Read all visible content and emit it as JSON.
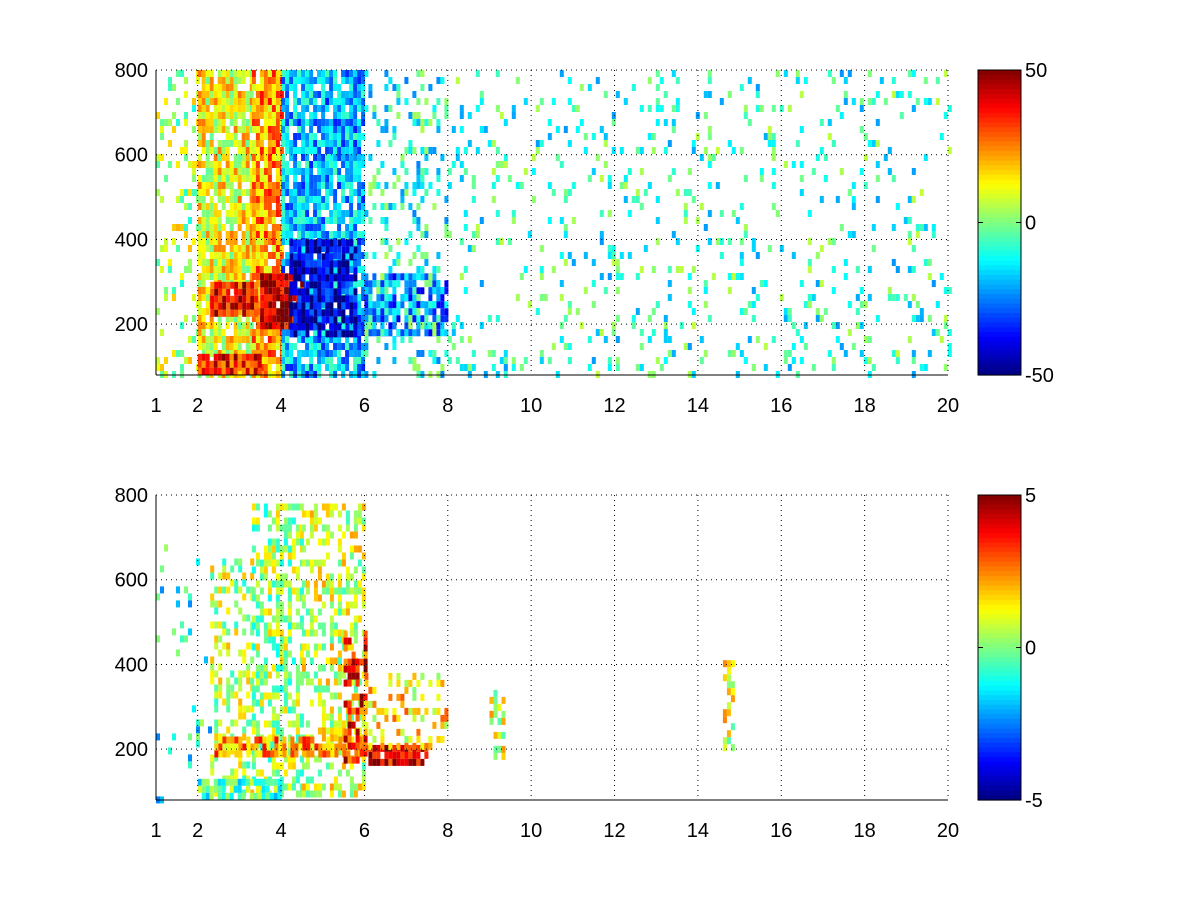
{
  "chart_data": [
    {
      "type": "heatmap",
      "colormap": "jet",
      "xlim": [
        1,
        20
      ],
      "ylim": [
        80,
        800
      ],
      "xticks": [
        1,
        2,
        4,
        6,
        8,
        10,
        12,
        14,
        16,
        18,
        20
      ],
      "yticks": [
        200,
        400,
        600,
        800
      ],
      "grid": true,
      "colorbar": {
        "min": -50,
        "max": 50,
        "ticks": [
          50,
          0,
          -50
        ],
        "placement": "right"
      },
      "regions": [
        {
          "x": [
            1.0,
            2.0
          ],
          "y": [
            80,
            800
          ],
          "value": 5,
          "density": 0.25
        },
        {
          "x": [
            2.0,
            3.3
          ],
          "y": [
            80,
            800
          ],
          "value": 12,
          "density": 0.85
        },
        {
          "x": [
            3.3,
            4.0
          ],
          "y": [
            80,
            800
          ],
          "value": 22,
          "density": 0.9
        },
        {
          "x": [
            4.0,
            6.0
          ],
          "y": [
            80,
            800
          ],
          "value": -20,
          "density": 0.85
        },
        {
          "x": [
            3.5,
            4.5
          ],
          "y": [
            200,
            320
          ],
          "value": 45,
          "density": 0.95
        },
        {
          "x": [
            2.3,
            3.4
          ],
          "y": [
            220,
            300
          ],
          "value": 38,
          "density": 0.9
        },
        {
          "x": [
            2.0,
            3.5
          ],
          "y": [
            90,
            130
          ],
          "value": 35,
          "density": 0.9
        },
        {
          "x": [
            4.2,
            5.8
          ],
          "y": [
            180,
            400
          ],
          "value": -42,
          "density": 0.85
        },
        {
          "x": [
            6.0,
            8.0
          ],
          "y": [
            180,
            320
          ],
          "value": -25,
          "density": 0.7
        },
        {
          "x": [
            6.0,
            8.0
          ],
          "y": [
            80,
            800
          ],
          "value": -10,
          "density": 0.25
        },
        {
          "x": [
            8.0,
            20.0
          ],
          "y": [
            80,
            800
          ],
          "value": -8,
          "density": 0.12
        }
      ]
    },
    {
      "type": "heatmap",
      "colormap": "jet",
      "xlim": [
        1,
        20
      ],
      "ylim": [
        80,
        800
      ],
      "xticks": [
        1,
        2,
        4,
        6,
        8,
        10,
        12,
        14,
        16,
        18,
        20
      ],
      "yticks": [
        200,
        400,
        600,
        800
      ],
      "grid": true,
      "colorbar": {
        "min": -5,
        "max": 5,
        "ticks": [
          5,
          0,
          -5
        ],
        "placement": "right"
      },
      "regions": [
        {
          "x": [
            1.0,
            2.3
          ],
          "y": [
            80,
            700
          ],
          "value": -1,
          "density": 0.04
        },
        {
          "x": [
            2.3,
            3.3
          ],
          "y": [
            90,
            650
          ],
          "value": 0.5,
          "density": 0.4
        },
        {
          "x": [
            3.3,
            4.5
          ],
          "y": [
            90,
            780
          ],
          "value": 0.3,
          "density": 0.55
        },
        {
          "x": [
            4.5,
            6.0
          ],
          "y": [
            90,
            780
          ],
          "value": 0.8,
          "density": 0.45
        },
        {
          "x": [
            2.0,
            4.0
          ],
          "y": [
            90,
            130
          ],
          "value": -0.5,
          "density": 0.9
        },
        {
          "x": [
            2.4,
            6.0
          ],
          "y": [
            195,
            230
          ],
          "value": 2.2,
          "density": 0.7
        },
        {
          "x": [
            5.5,
            6.0
          ],
          "y": [
            180,
            480
          ],
          "value": 3.5,
          "density": 0.5
        },
        {
          "x": [
            6.0,
            7.5
          ],
          "y": [
            170,
            210
          ],
          "value": 4.2,
          "density": 0.85
        },
        {
          "x": [
            6.0,
            8.0
          ],
          "y": [
            200,
            380
          ],
          "value": 1.5,
          "density": 0.3
        },
        {
          "x": [
            9.0,
            9.3
          ],
          "y": [
            190,
            340
          ],
          "value": 1.0,
          "density": 0.3
        },
        {
          "x": [
            14.6,
            14.8
          ],
          "y": [
            200,
            410
          ],
          "value": 1.0,
          "density": 0.5
        }
      ]
    }
  ]
}
